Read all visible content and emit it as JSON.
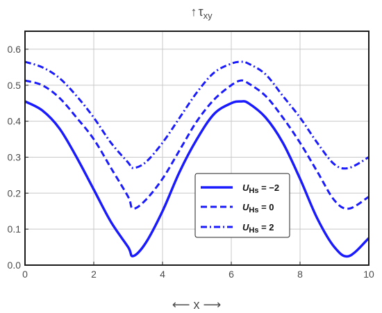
{
  "chart_data": {
    "type": "line",
    "title": "",
    "ylabel": "↑τxy",
    "ylabel_parts": {
      "arrow": "↑",
      "symbol": "τ",
      "subscript": "xy"
    },
    "xlabel": "⟵ x ⟶",
    "xlim": [
      0,
      10
    ],
    "ylim": [
      0,
      0.65
    ],
    "x_ticks": [
      0,
      2,
      4,
      6,
      8,
      10
    ],
    "x_tick_labels": [
      "0",
      "2",
      "4",
      "6",
      "8",
      "10"
    ],
    "y_ticks": [
      0.0,
      0.1,
      0.2,
      0.3,
      0.4,
      0.5,
      0.6
    ],
    "y_tick_labels": [
      "0.0",
      "0.1",
      "0.2",
      "0.3",
      "0.4",
      "0.5",
      "0.6"
    ],
    "grid": true,
    "legend_position": "center-right",
    "color": "#1a1aff",
    "series": [
      {
        "name": "UHs = −2",
        "legend_symbol": "U",
        "legend_sub": "Hs",
        "legend_value": " = −2",
        "style": "solid",
        "x": [
          0,
          0.5,
          1,
          1.5,
          2,
          2.5,
          3,
          3.14,
          3.5,
          4,
          4.5,
          5,
          5.5,
          6,
          6.28,
          6.5,
          7,
          7.5,
          8,
          8.5,
          9,
          9.42,
          10
        ],
        "values": [
          0.455,
          0.43,
          0.38,
          0.3,
          0.21,
          0.12,
          0.05,
          0.025,
          0.06,
          0.15,
          0.26,
          0.35,
          0.42,
          0.45,
          0.455,
          0.45,
          0.41,
          0.34,
          0.24,
          0.13,
          0.05,
          0.025,
          0.075
        ]
      },
      {
        "name": "UHs = 0",
        "legend_symbol": "U",
        "legend_sub": "Hs",
        "legend_value": " = 0",
        "style": "dashed",
        "x": [
          0,
          0.5,
          1,
          1.5,
          2,
          2.5,
          3,
          3.14,
          3.5,
          4,
          4.5,
          5,
          5.5,
          6,
          6.28,
          6.5,
          7,
          7.5,
          8,
          8.5,
          9,
          9.42,
          10
        ],
        "values": [
          0.513,
          0.5,
          0.465,
          0.41,
          0.35,
          0.27,
          0.19,
          0.157,
          0.18,
          0.24,
          0.32,
          0.4,
          0.46,
          0.5,
          0.513,
          0.505,
          0.47,
          0.41,
          0.34,
          0.26,
          0.18,
          0.157,
          0.19
        ]
      },
      {
        "name": "UHs = 2",
        "legend_symbol": "U",
        "legend_sub": "Hs",
        "legend_value": " = 2",
        "style": "dashdot",
        "x": [
          0,
          0.5,
          1,
          1.5,
          2,
          2.5,
          3,
          3.14,
          3.5,
          4,
          4.5,
          5,
          5.5,
          6,
          6.28,
          6.5,
          7,
          7.5,
          8,
          8.5,
          9,
          9.42,
          10
        ],
        "values": [
          0.565,
          0.55,
          0.52,
          0.47,
          0.41,
          0.34,
          0.285,
          0.27,
          0.285,
          0.34,
          0.41,
          0.48,
          0.535,
          0.56,
          0.565,
          0.56,
          0.53,
          0.47,
          0.41,
          0.34,
          0.28,
          0.27,
          0.3
        ]
      }
    ]
  }
}
